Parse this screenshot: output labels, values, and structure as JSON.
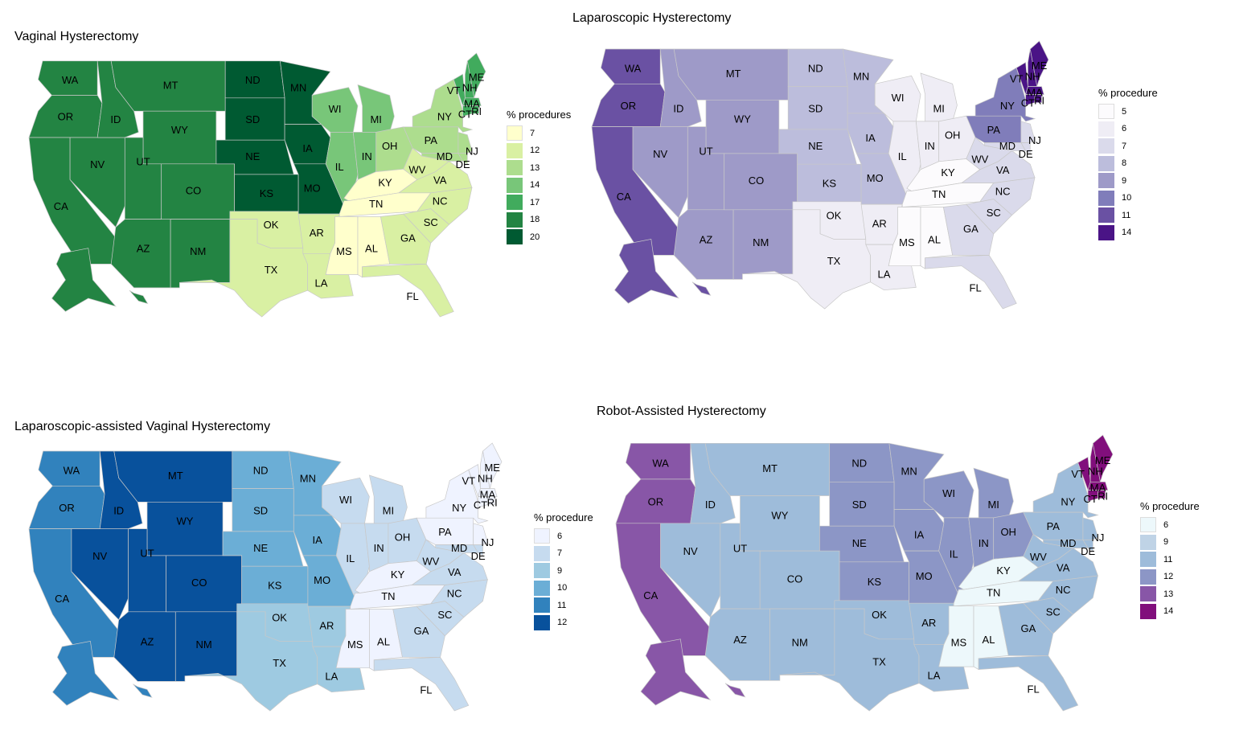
{
  "panels": [
    {
      "title": "Vaginal Hysterectomy",
      "legend_title": "% procedures",
      "legend_values": [
        "7",
        "12",
        "13",
        "14",
        "17",
        "18",
        "20"
      ],
      "palette": [
        "#ffffcc",
        "#d9f0a3",
        "#addd8e",
        "#78c679",
        "#41ab5d",
        "#238443",
        "#005a32"
      ],
      "state_class": {
        "WA": 5,
        "OR": 5,
        "CA": 5,
        "NV": 5,
        "ID": 5,
        "MT": 5,
        "WY": 5,
        "UT": 5,
        "AZ": 5,
        "CO": 5,
        "NM": 5,
        "ND": 6,
        "SD": 6,
        "NE": 6,
        "KS": 6,
        "MN": 6,
        "IA": 6,
        "MO": 6,
        "OK": 1,
        "TX": 1,
        "AR": 1,
        "LA": 1,
        "MS": 0,
        "AL": 0,
        "TN": 0,
        "KY": 0,
        "WI": 3,
        "MI": 3,
        "IL": 3,
        "IN": 3,
        "OH": 2,
        "WV": 1,
        "VA": 1,
        "NC": 1,
        "SC": 1,
        "GA": 1,
        "FL": 1,
        "PA": 2,
        "NY": 2,
        "NJ": 2,
        "MD": 2,
        "DE": 2,
        "VT": 4,
        "NH": 4,
        "ME": 4,
        "MA": 4,
        "CT": 4,
        "RI": 4,
        "AK": 5,
        "HI": 5
      }
    },
    {
      "title": "Laparoscopic Hysterectomy",
      "legend_title": "% procedure",
      "legend_values": [
        "5",
        "6",
        "7",
        "8",
        "9",
        "10",
        "11",
        "14"
      ],
      "palette": [
        "#fcfbfd",
        "#efedf5",
        "#dadaeb",
        "#bcbddc",
        "#9e9ac8",
        "#807dba",
        "#6a51a3",
        "#4a1486"
      ],
      "state_class": {
        "WA": 6,
        "OR": 6,
        "CA": 6,
        "NV": 4,
        "ID": 4,
        "MT": 4,
        "WY": 4,
        "UT": 4,
        "AZ": 4,
        "CO": 4,
        "NM": 4,
        "ND": 3,
        "SD": 3,
        "NE": 3,
        "KS": 3,
        "MN": 3,
        "IA": 3,
        "MO": 3,
        "OK": 1,
        "TX": 1,
        "AR": 1,
        "LA": 1,
        "MS": 0,
        "AL": 0,
        "TN": 0,
        "KY": 0,
        "WI": 1,
        "MI": 1,
        "IL": 1,
        "IN": 1,
        "OH": 1,
        "WV": 2,
        "VA": 2,
        "NC": 2,
        "SC": 2,
        "GA": 2,
        "FL": 2,
        "PA": 5,
        "NY": 5,
        "NJ": 2,
        "MD": 2,
        "DE": 2,
        "VT": 7,
        "NH": 7,
        "ME": 7,
        "MA": 7,
        "CT": 7,
        "RI": 7,
        "AK": 6,
        "HI": 6
      }
    },
    {
      "title": "Laparoscopic-assisted Vaginal Hysterectomy",
      "legend_title": "% procedure",
      "legend_values": [
        "6",
        "7",
        "9",
        "10",
        "11",
        "12"
      ],
      "palette": [
        "#eff3ff",
        "#c6dbef",
        "#9ecae1",
        "#6baed6",
        "#3182bd",
        "#08519c"
      ],
      "state_class": {
        "WA": 4,
        "OR": 4,
        "CA": 4,
        "NV": 5,
        "ID": 5,
        "MT": 5,
        "WY": 5,
        "UT": 5,
        "AZ": 5,
        "CO": 5,
        "NM": 5,
        "ND": 3,
        "SD": 3,
        "NE": 3,
        "KS": 3,
        "MN": 3,
        "IA": 3,
        "MO": 3,
        "OK": 2,
        "TX": 2,
        "AR": 2,
        "LA": 2,
        "MS": 0,
        "AL": 0,
        "TN": 0,
        "KY": 0,
        "WI": 1,
        "MI": 1,
        "IL": 1,
        "IN": 1,
        "OH": 1,
        "WV": 1,
        "VA": 1,
        "NC": 1,
        "SC": 1,
        "GA": 1,
        "FL": 1,
        "PA": 0,
        "NY": 0,
        "NJ": 0,
        "MD": 1,
        "DE": 1,
        "VT": 0,
        "NH": 0,
        "ME": 0,
        "MA": 0,
        "CT": 0,
        "RI": 0,
        "AK": 4,
        "HI": 4
      }
    },
    {
      "title": "Robot-Assisted Hysterectomy",
      "legend_title": "% procedure",
      "legend_values": [
        "6",
        "9",
        "11",
        "12",
        "13",
        "14"
      ],
      "palette": [
        "#edf8fb",
        "#bfd3e6",
        "#9ebcda",
        "#8c96c6",
        "#8856a7",
        "#810f7c"
      ],
      "state_class": {
        "WA": 4,
        "OR": 4,
        "CA": 4,
        "NV": 2,
        "ID": 2,
        "MT": 2,
        "WY": 2,
        "UT": 2,
        "AZ": 2,
        "CO": 2,
        "NM": 2,
        "ND": 3,
        "SD": 3,
        "NE": 3,
        "KS": 3,
        "MN": 3,
        "IA": 3,
        "MO": 3,
        "OK": 2,
        "TX": 2,
        "AR": 2,
        "LA": 2,
        "MS": 0,
        "AL": 0,
        "TN": 0,
        "KY": 0,
        "WI": 3,
        "MI": 3,
        "IL": 3,
        "IN": 3,
        "OH": 3,
        "WV": 2,
        "VA": 2,
        "NC": 2,
        "SC": 2,
        "GA": 2,
        "FL": 2,
        "PA": 2,
        "NY": 2,
        "NJ": 2,
        "MD": 2,
        "DE": 2,
        "VT": 5,
        "NH": 5,
        "ME": 5,
        "MA": 5,
        "CT": 5,
        "RI": 5,
        "AK": 4,
        "HI": 4
      }
    }
  ]
}
